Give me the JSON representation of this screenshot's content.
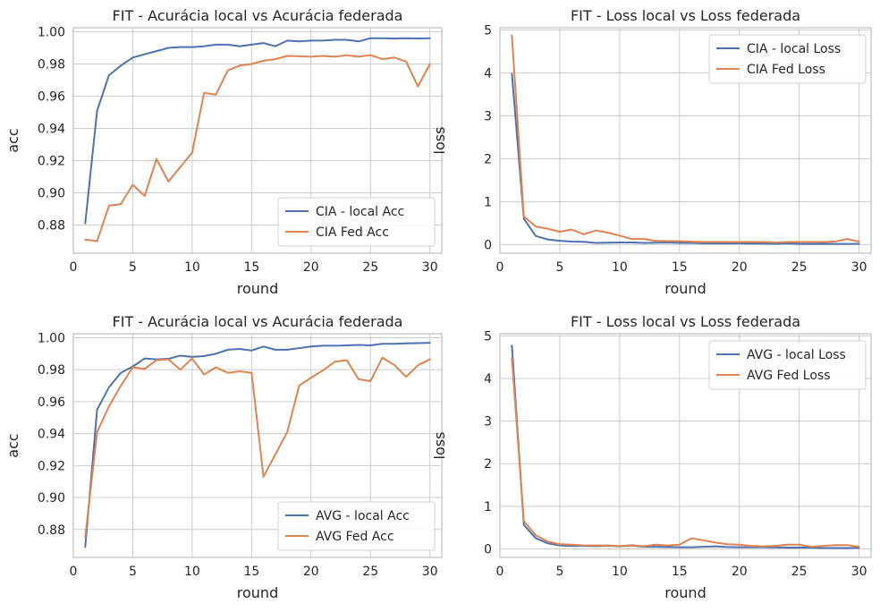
{
  "figure": {
    "colors": {
      "series_1": "#4c72b0",
      "series_2": "#dd8452",
      "grid": "#cccccc",
      "frame": "#cccccc"
    }
  },
  "chart_data": [
    {
      "type": "line",
      "title": "FIT - Acurácia local vs Acurácia federada",
      "xlabel": "round",
      "ylabel": "acc",
      "xlim": [
        0,
        31
      ],
      "ylim": [
        0.8625,
        1.0025
      ],
      "xticks": [
        "0",
        "5",
        "10",
        "15",
        "20",
        "25",
        "30"
      ],
      "yticks": [
        "0.88",
        "0.90",
        "0.92",
        "0.94",
        "0.96",
        "0.98",
        "1.00"
      ],
      "legend_position": "lower right",
      "grid": true,
      "x": [
        1,
        2,
        3,
        4,
        5,
        6,
        7,
        8,
        9,
        10,
        11,
        12,
        13,
        14,
        15,
        16,
        17,
        18,
        19,
        20,
        21,
        22,
        23,
        24,
        25,
        26,
        27,
        28,
        29,
        30
      ],
      "series": [
        {
          "name": "CIA - local Acc",
          "color": "#4c72b0",
          "values": [
            0.881,
            0.951,
            0.973,
            0.979,
            0.984,
            0.986,
            0.988,
            0.99,
            0.9905,
            0.9905,
            0.991,
            0.992,
            0.992,
            0.991,
            0.992,
            0.993,
            0.991,
            0.9945,
            0.994,
            0.9945,
            0.9945,
            0.995,
            0.995,
            0.994,
            0.996,
            0.996,
            0.9958,
            0.996,
            0.9958,
            0.996
          ]
        },
        {
          "name": "CIA Fed Acc",
          "color": "#dd8452",
          "values": [
            0.871,
            0.87,
            0.892,
            0.893,
            0.905,
            0.898,
            0.921,
            0.907,
            0.916,
            0.925,
            0.962,
            0.961,
            0.976,
            0.979,
            0.98,
            0.982,
            0.983,
            0.985,
            0.9848,
            0.9845,
            0.985,
            0.9845,
            0.9855,
            0.9845,
            0.9855,
            0.983,
            0.984,
            0.9815,
            0.966,
            0.98
          ]
        }
      ]
    },
    {
      "type": "line",
      "title": "FIT - Loss local vs Loss federada",
      "xlabel": "round",
      "ylabel": "loss",
      "xlim": [
        0,
        31
      ],
      "ylim": [
        -0.2,
        5.05
      ],
      "xticks": [
        "0",
        "5",
        "10",
        "15",
        "20",
        "25",
        "30"
      ],
      "yticks": [
        "0",
        "1",
        "2",
        "3",
        "4",
        "5"
      ],
      "legend_position": "upper right",
      "grid": true,
      "x": [
        1,
        2,
        3,
        4,
        5,
        6,
        7,
        8,
        9,
        10,
        11,
        12,
        13,
        14,
        15,
        16,
        17,
        18,
        19,
        20,
        21,
        22,
        23,
        24,
        25,
        26,
        27,
        28,
        29,
        30
      ],
      "series": [
        {
          "name": "CIA - local Loss",
          "color": "#4c72b0",
          "values": [
            3.98,
            0.6,
            0.2,
            0.12,
            0.09,
            0.07,
            0.065,
            0.04,
            0.045,
            0.05,
            0.05,
            0.04,
            0.045,
            0.05,
            0.04,
            0.04,
            0.03,
            0.03,
            0.03,
            0.03,
            0.025,
            0.025,
            0.02,
            0.03,
            0.015,
            0.015,
            0.02,
            0.015,
            0.015,
            0.02
          ]
        },
        {
          "name": "CIA Fed Loss",
          "color": "#dd8452",
          "values": [
            4.87,
            0.65,
            0.42,
            0.37,
            0.3,
            0.35,
            0.24,
            0.33,
            0.28,
            0.21,
            0.13,
            0.13,
            0.09,
            0.08,
            0.08,
            0.07,
            0.06,
            0.06,
            0.06,
            0.06,
            0.06,
            0.06,
            0.05,
            0.06,
            0.06,
            0.06,
            0.06,
            0.07,
            0.13,
            0.07
          ]
        }
      ]
    },
    {
      "type": "line",
      "title": "FIT - Acurácia local vs Acurácia federada",
      "xlabel": "round",
      "ylabel": "acc",
      "xlim": [
        0,
        31
      ],
      "ylim": [
        0.8625,
        1.0025
      ],
      "xticks": [
        "0",
        "5",
        "10",
        "15",
        "20",
        "25",
        "30"
      ],
      "yticks": [
        "0.88",
        "0.90",
        "0.92",
        "0.94",
        "0.96",
        "0.98",
        "1.00"
      ],
      "legend_position": "lower right",
      "grid": true,
      "x": [
        1,
        2,
        3,
        4,
        5,
        6,
        7,
        8,
        9,
        10,
        11,
        12,
        13,
        14,
        15,
        16,
        17,
        18,
        19,
        20,
        21,
        22,
        23,
        24,
        25,
        26,
        27,
        28,
        29,
        30
      ],
      "series": [
        {
          "name": "AVG - local Acc",
          "color": "#4c72b0",
          "values": [
            0.869,
            0.955,
            0.969,
            0.978,
            0.982,
            0.987,
            0.9865,
            0.9868,
            0.9888,
            0.988,
            0.9885,
            0.99,
            0.9925,
            0.993,
            0.992,
            0.9945,
            0.9925,
            0.9925,
            0.9935,
            0.9945,
            0.995,
            0.995,
            0.9952,
            0.9955,
            0.9952,
            0.9962,
            0.9962,
            0.9965,
            0.9966,
            0.9968
          ]
        },
        {
          "name": "AVG Fed Acc",
          "color": "#dd8452",
          "values": [
            0.875,
            0.941,
            0.957,
            0.97,
            0.9815,
            0.9805,
            0.986,
            0.9865,
            0.98,
            0.987,
            0.977,
            0.9815,
            0.978,
            0.979,
            0.978,
            0.913,
            0.927,
            0.941,
            0.97,
            0.975,
            0.9795,
            0.985,
            0.986,
            0.974,
            0.9728,
            0.9875,
            0.983,
            0.9755,
            0.9828,
            0.9865
          ]
        }
      ]
    },
    {
      "type": "line",
      "title": "FIT - Loss local vs Loss federada",
      "xlabel": "round",
      "ylabel": "loss",
      "xlim": [
        0,
        31
      ],
      "ylim": [
        -0.2,
        5.05
      ],
      "xticks": [
        "0",
        "5",
        "10",
        "15",
        "20",
        "25",
        "30"
      ],
      "yticks": [
        "0",
        "1",
        "2",
        "3",
        "4",
        "5"
      ],
      "legend_position": "upper right",
      "grid": true,
      "x": [
        1,
        2,
        3,
        4,
        5,
        6,
        7,
        8,
        9,
        10,
        11,
        12,
        13,
        14,
        15,
        16,
        17,
        18,
        19,
        20,
        21,
        22,
        23,
        24,
        25,
        26,
        27,
        28,
        29,
        30
      ],
      "series": [
        {
          "name": "AVG - local Loss",
          "color": "#4c72b0",
          "values": [
            4.77,
            0.56,
            0.25,
            0.13,
            0.08,
            0.07,
            0.07,
            0.065,
            0.075,
            0.06,
            0.08,
            0.05,
            0.05,
            0.045,
            0.04,
            0.04,
            0.05,
            0.06,
            0.045,
            0.04,
            0.04,
            0.04,
            0.035,
            0.03,
            0.03,
            0.03,
            0.02,
            0.02,
            0.02,
            0.025
          ]
        },
        {
          "name": "AVG Fed Loss",
          "color": "#dd8452",
          "values": [
            4.48,
            0.65,
            0.32,
            0.17,
            0.11,
            0.1,
            0.08,
            0.08,
            0.08,
            0.065,
            0.09,
            0.06,
            0.1,
            0.08,
            0.1,
            0.25,
            0.2,
            0.15,
            0.11,
            0.1,
            0.07,
            0.06,
            0.07,
            0.1,
            0.1,
            0.05,
            0.07,
            0.09,
            0.09,
            0.05
          ]
        }
      ]
    }
  ]
}
